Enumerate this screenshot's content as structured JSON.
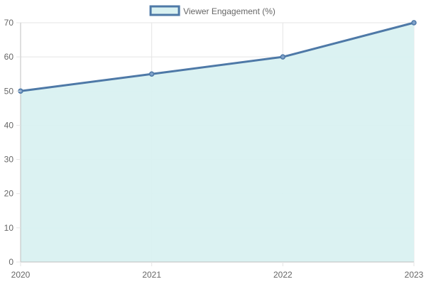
{
  "chart_data": {
    "type": "area",
    "categories": [
      "2020",
      "2021",
      "2022",
      "2023"
    ],
    "series": [
      {
        "name": "Viewer Engagement (%)",
        "values": [
          50,
          55,
          60,
          70
        ]
      }
    ],
    "ylim": [
      0,
      70
    ],
    "yticks": [
      0,
      10,
      20,
      30,
      40,
      50,
      60,
      70
    ],
    "grid": true,
    "legend_position": "top-center",
    "colors": {
      "line": "#4e79a7",
      "fill": "#d9f1f1",
      "grid": "#e5e5e5",
      "axis": "#bfbfbf",
      "text": "#666666"
    }
  }
}
